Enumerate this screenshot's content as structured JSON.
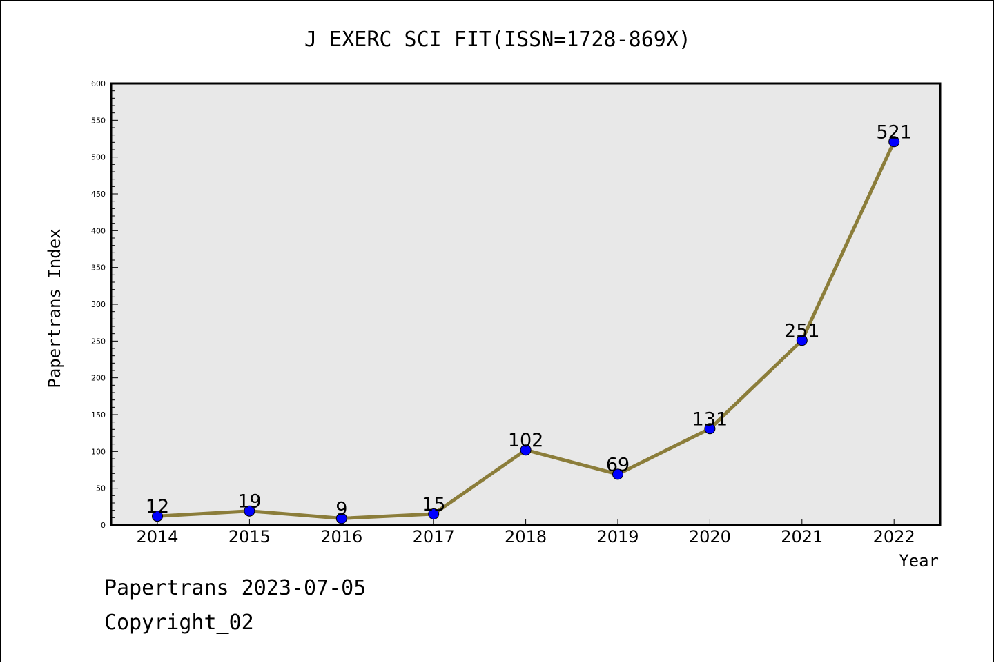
{
  "chart_data": {
    "type": "line",
    "title": "J EXERC SCI FIT(ISSN=1728-869X)",
    "xlabel": "Year",
    "ylabel": "Papertrans Index",
    "categories": [
      "2014",
      "2015",
      "2016",
      "2017",
      "2018",
      "2019",
      "2020",
      "2021",
      "2022"
    ],
    "values": [
      12,
      19,
      9,
      15,
      102,
      69,
      131,
      251,
      521
    ],
    "data_labels": [
      "12",
      "19",
      "9",
      "15",
      "102",
      "69",
      "131",
      "251",
      "521"
    ],
    "ylim": [
      0,
      600
    ],
    "yticks": [
      "0",
      "50",
      "100",
      "150",
      "200",
      "250",
      "300",
      "350",
      "400",
      "450",
      "500",
      "550",
      "600"
    ],
    "ytick_values": [
      0,
      50,
      100,
      150,
      200,
      250,
      300,
      350,
      400,
      450,
      500,
      550,
      600
    ],
    "grid": false,
    "legend": "none",
    "colors": {
      "line": "#8b7d3a",
      "marker": "#0000ff",
      "plot_background": "#e8e8e8"
    }
  },
  "footer": {
    "date_text": "Papertrans 2023-07-05",
    "copyright_text": "Copyright_02"
  }
}
